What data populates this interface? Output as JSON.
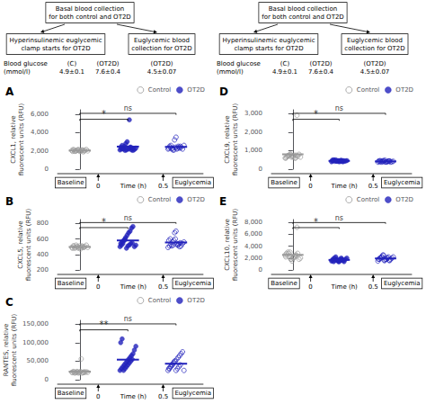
{
  "chart_data": [
    {
      "type": "scatter",
      "title": "A",
      "ylabel": "CXCL1, relative\nfluorescent units (RFU)",
      "xlabel": "Time (h)",
      "ylim": [
        0,
        6500
      ],
      "yticks": [
        0,
        {
          "value": 2000,
          "label": "2,000"
        },
        {
          "value": 4000,
          "label": "4,000"
        },
        {
          "value": 6000,
          "label": "6,000"
        }
      ],
      "grid": false,
      "legend": "upper right",
      "tick_labels": "y",
      "header": [
        "Basal blood collection\nfor both control and OT2D",
        "Hyperinsulinemic euglycemic\nclamp starts for OT2D",
        "Euglycemic blood\ncollection for OT2D",
        "Blood glucose\n(mmol/l)",
        "(C)\n4.9±0.1",
        "(OT2D)\n7.6±0.4",
        "(OT2D)\n4.5±0.07"
      ],
      "annotations": [
        "*",
        "ns",
        "Baseline",
        "0",
        "0.5",
        "Euglycemia"
      ],
      "series": [
        {
          "name": "Control",
          "color": "#999999",
          "marker": "open_circle",
          "values": [
            2050,
            2150,
            1950,
            2000,
            2100,
            2050,
            2000,
            2100,
            1900,
            2050,
            2150,
            2000,
            1950,
            2100,
            2000,
            2050,
            2150,
            1950,
            2000,
            2080,
            2010
          ],
          "mean": 2037.6190476190477
        },
        {
          "name": "OT2D",
          "color": "#2222bb",
          "marker": "circle",
          "values": [
            2100,
            2200,
            2300,
            2500,
            2800,
            3000,
            2200,
            2400,
            2100,
            2050,
            2150,
            2300,
            2400,
            2600,
            2200,
            2050,
            2100,
            2300,
            5400,
            2400,
            2300
          ],
          "mean": 2469.0476190476193
        },
        {
          "name": "OT2D",
          "color": "#2222bb",
          "marker": "open_circle",
          "values": [
            2200,
            2500,
            2600,
            2300,
            2100,
            2400,
            2200,
            2500,
            2300,
            2400,
            2200,
            2600,
            2300,
            2400,
            2200,
            2100,
            3200,
            3500,
            2300,
            2400,
            2500
          ],
          "mean": 2438.095238095238
        }
      ]
    },
    {
      "type": "scatter",
      "title": "B",
      "ylabel": "CXCL5, relative\nfluorescent units (RFU)",
      "xlabel": "Time (h)",
      "ylim": [
        200,
        850
      ],
      "yticks": [
        200,
        400,
        600,
        800
      ],
      "grid": false,
      "legend": "upper right",
      "tick_labels": "y",
      "annotations": [
        "*",
        "ns",
        "Baseline",
        "0",
        "0.5",
        "Euglycemia"
      ],
      "series": [
        {
          "name": "Control",
          "color": "#999999",
          "marker": "open_circle",
          "values": [
            490,
            510,
            480,
            520,
            500,
            490,
            470,
            510,
            490,
            500,
            520,
            490,
            480,
            510,
            490,
            500,
            480,
            510,
            490,
            500,
            495
          ],
          "mean": 496.42857142857144
        },
        {
          "name": "OT2D",
          "color": "#2222bb",
          "marker": "circle",
          "values": [
            500,
            520,
            540,
            580,
            620,
            650,
            680,
            700,
            740,
            760,
            500,
            520,
            540,
            560,
            580,
            600,
            480,
            510,
            520,
            540,
            550
          ],
          "mean": 580.4761904761905
        },
        {
          "name": "OT2D",
          "color": "#2222bb",
          "marker": "open_circle",
          "values": [
            490,
            510,
            530,
            560,
            580,
            600,
            540,
            520,
            500,
            510,
            540,
            560,
            580,
            600,
            510,
            520,
            680,
            700,
            520,
            540,
            550
          ],
          "mean": 554.2857142857143
        }
      ]
    },
    {
      "type": "scatter",
      "title": "C",
      "ylabel": "RANTES, relative\nfluorescent units (RFU)",
      "xlabel": "Time (h)",
      "ylim": [
        0,
        160000
      ],
      "yticks": [
        0,
        {
          "value": 50000,
          "label": "50,000"
        },
        {
          "value": 100000,
          "label": "100,000"
        },
        {
          "value": 150000,
          "label": "150,000"
        }
      ],
      "grid": false,
      "legend": "upper right",
      "tick_labels": "y",
      "annotations": [
        "**",
        "ns",
        "Baseline",
        "0",
        "0.5",
        "Euglycemia"
      ],
      "series": [
        {
          "name": "Control",
          "color": "#999999",
          "marker": "open_circle",
          "values": [
            20000,
            22000,
            18000,
            19000,
            21000,
            20000,
            22000,
            18000,
            19000,
            20000,
            21000,
            20000,
            19000,
            21000,
            20000,
            22000,
            18000,
            20000,
            56000,
            20000,
            21000
          ],
          "mean": 21761.904761904763
        },
        {
          "name": "OT2D",
          "color": "#2222bb",
          "marker": "circle",
          "values": [
            25000,
            30000,
            35000,
            40000,
            45000,
            50000,
            55000,
            60000,
            65000,
            70000,
            80000,
            90000,
            100000,
            110000,
            25000,
            30000,
            35000,
            40000,
            45000,
            50000,
            55000
          ],
          "mean": 54047.61904761905
        },
        {
          "name": "OT2D",
          "color": "#2222bb",
          "marker": "open_circle",
          "values": [
            25000,
            30000,
            35000,
            40000,
            45000,
            50000,
            55000,
            60000,
            65000,
            70000,
            75000,
            25000,
            30000,
            35000,
            40000,
            45000,
            50000,
            25000,
            30000,
            35000,
            40000
          ],
          "mean": 43095.23809523809
        }
      ]
    },
    {
      "type": "scatter",
      "title": "D",
      "ylabel": "CXCL9, relative\nfluorescent units (RFU)",
      "xlabel": "Time (h)",
      "ylim": [
        0,
        3200
      ],
      "yticks": [
        0,
        {
          "value": 1000,
          "label": "1,000"
        },
        {
          "value": 2000,
          "label": "2,000"
        },
        {
          "value": 3000,
          "label": "3,000"
        }
      ],
      "grid": false,
      "legend": "upper right",
      "tick_labels": "y",
      "header": [
        "Basal blood collection\nfor both control and OT2D",
        "Hyperinsulinemic euglycemic\nclamp starts for OT2D",
        "Euglycemic blood\ncollection for OT2D",
        "Blood glucose\n(mmol/l)",
        "(C)\n4.9±0.1",
        "(OT2D)\n7.6±0.4",
        "(OT2D)\n4.5±0.07"
      ],
      "annotations": [
        "*",
        "ns",
        "Baseline",
        "0",
        "0.5",
        "Euglycemia"
      ],
      "series": [
        {
          "name": "Control",
          "color": "#999999",
          "marker": "open_circle",
          "values": [
            600,
            650,
            700,
            750,
            800,
            700,
            650,
            600,
            750,
            700,
            800,
            650,
            600,
            700,
            750,
            800,
            650,
            700,
            750,
            600,
            2900
          ],
          "mean": 800
        },
        {
          "name": "OT2D",
          "color": "#2222bb",
          "marker": "circle",
          "values": [
            400,
            450,
            480,
            500,
            420,
            440,
            460,
            480,
            400,
            420,
            440,
            460,
            480,
            500,
            420,
            440,
            460,
            400,
            420,
            440,
            460
          ],
          "mean": 446.1904761904762
        },
        {
          "name": "OT2D",
          "color": "#2222bb",
          "marker": "open_circle",
          "values": [
            380,
            400,
            420,
            440,
            460,
            480,
            400,
            420,
            440,
            380,
            400,
            420,
            440,
            460,
            380,
            400,
            420,
            380,
            400,
            420,
            440
          ],
          "mean": 418.0952380952381
        }
      ]
    },
    {
      "type": "scatter",
      "title": "E",
      "ylabel": "CXCL10, relative\nfluorescent units (RFU)",
      "xlabel": "Time (h)",
      "ylim": [
        0,
        8500
      ],
      "yticks": [
        0,
        {
          "value": 2000,
          "label": "2,000"
        },
        {
          "value": 4000,
          "label": "4,000"
        },
        {
          "value": 6000,
          "label": "6,000"
        },
        {
          "value": 8000,
          "label": "8,000"
        }
      ],
      "grid": false,
      "legend": "upper right",
      "tick_labels": "y",
      "annotations": [
        "*",
        "ns",
        "Baseline",
        "0",
        "0.5",
        "Euglycemia"
      ],
      "series": [
        {
          "name": "Control",
          "color": "#999999",
          "marker": "open_circle",
          "values": [
            2500,
            2800,
            3000,
            2200,
            1800,
            1500,
            2000,
            2200,
            2500,
            2800,
            1800,
            2000,
            2200,
            2500,
            2800,
            3000,
            1800,
            2000,
            2200,
            2500,
            7200
          ],
          "mean": 2538.095238095238
        },
        {
          "name": "OT2D",
          "color": "#2222bb",
          "marker": "circle",
          "values": [
            1500,
            1800,
            2000,
            2200,
            1600,
            1400,
            1800,
            2000,
            1600,
            1400,
            1800,
            2000,
            1600,
            1400,
            1600,
            1800,
            1600,
            1400,
            1600,
            1800,
            1600
          ],
          "mean": 1690.4761904761904
        },
        {
          "name": "OT2D",
          "color": "#2222bb",
          "marker": "open_circle",
          "values": [
            1500,
            1800,
            2000,
            2200,
            2500,
            1600,
            1800,
            2000,
            1600,
            1800,
            2000,
            2200,
            1800,
            2000,
            2200,
            2500,
            1600,
            1800,
            2000,
            2200,
            1600
          ],
          "mean": 1938.095238095238
        }
      ]
    }
  ]
}
